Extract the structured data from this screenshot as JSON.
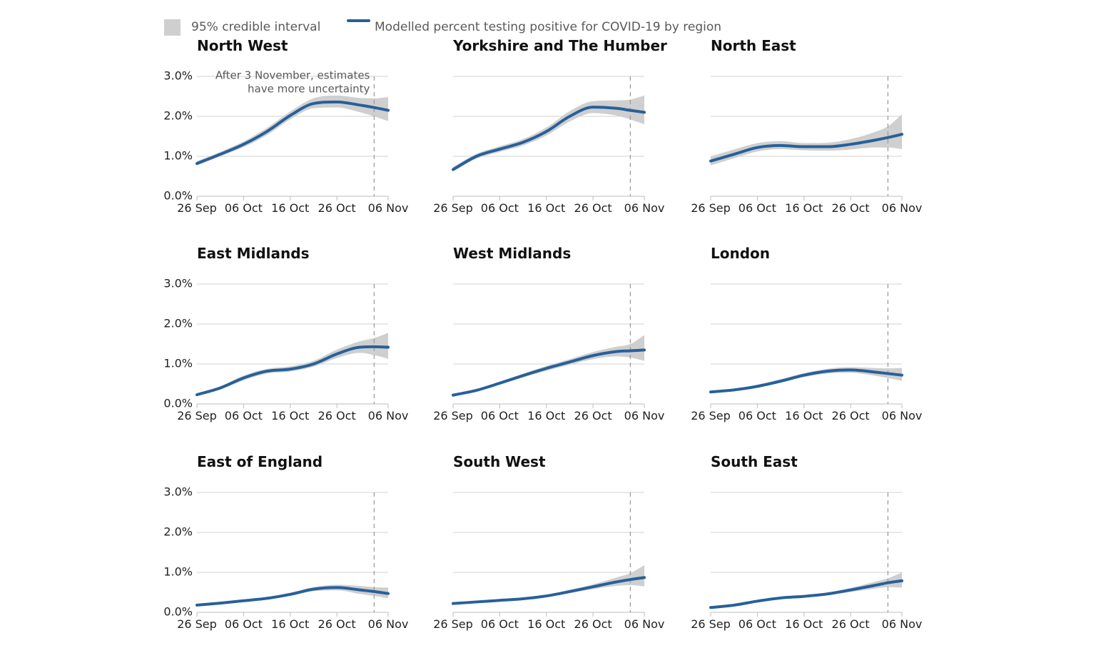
{
  "chart_data": {
    "type": "line",
    "legend": {
      "band_label": "95% credible interval",
      "line_label": "Modelled percent testing positive for COVID-19 by region",
      "placement": "top-left"
    },
    "colors": {
      "line": "#27609a",
      "band": "#cfcfcf",
      "grid": "#d0d0d0"
    },
    "x_ticks": [
      "26 Sep",
      "06 Oct",
      "16 Oct",
      "26 Oct",
      "06 Nov"
    ],
    "x_tick_days": [
      0,
      10,
      20,
      30,
      41
    ],
    "x_range_days": [
      0,
      41
    ],
    "y_ticks": [
      "0.0%",
      "1.0%",
      "2.0%",
      "3.0%"
    ],
    "ylim": [
      0,
      3
    ],
    "cutoff_day": 38,
    "annotation": [
      "After 3 November, estimates",
      "have more uncertainty"
    ],
    "panels": [
      {
        "name": "North West",
        "x": [
          0,
          5,
          10,
          15,
          20,
          25,
          30,
          35,
          38,
          41
        ],
        "y": [
          0.82,
          1.05,
          1.3,
          1.62,
          2.02,
          2.32,
          2.36,
          2.28,
          2.22,
          2.15
        ],
        "lower": [
          0.77,
          1.0,
          1.23,
          1.53,
          1.92,
          2.2,
          2.22,
          2.1,
          2.0,
          1.88
        ],
        "upper": [
          0.88,
          1.11,
          1.37,
          1.71,
          2.12,
          2.45,
          2.52,
          2.46,
          2.45,
          2.48
        ]
      },
      {
        "name": "Yorkshire and The Humber",
        "x": [
          0,
          5,
          10,
          15,
          20,
          25,
          30,
          35,
          38,
          41
        ],
        "y": [
          0.67,
          1.0,
          1.18,
          1.35,
          1.62,
          2.0,
          2.23,
          2.2,
          2.15,
          2.1
        ],
        "lower": [
          0.62,
          0.94,
          1.11,
          1.27,
          1.52,
          1.87,
          2.08,
          2.02,
          1.92,
          1.8
        ],
        "upper": [
          0.73,
          1.06,
          1.25,
          1.43,
          1.72,
          2.13,
          2.38,
          2.4,
          2.42,
          2.52
        ]
      },
      {
        "name": "North East",
        "x": [
          0,
          5,
          10,
          15,
          20,
          25,
          30,
          35,
          38,
          41
        ],
        "y": [
          0.88,
          1.05,
          1.22,
          1.27,
          1.24,
          1.24,
          1.3,
          1.4,
          1.47,
          1.55
        ],
        "lower": [
          0.77,
          0.95,
          1.12,
          1.18,
          1.15,
          1.14,
          1.17,
          1.22,
          1.22,
          1.18
        ],
        "upper": [
          1.0,
          1.17,
          1.33,
          1.38,
          1.33,
          1.34,
          1.43,
          1.6,
          1.75,
          2.05
        ]
      },
      {
        "name": "East Midlands",
        "x": [
          0,
          5,
          10,
          15,
          20,
          25,
          30,
          35,
          38,
          41
        ],
        "y": [
          0.23,
          0.4,
          0.65,
          0.82,
          0.87,
          1.0,
          1.25,
          1.42,
          1.43,
          1.42
        ],
        "lower": [
          0.2,
          0.36,
          0.59,
          0.76,
          0.81,
          0.93,
          1.15,
          1.28,
          1.22,
          1.13
        ],
        "upper": [
          0.27,
          0.44,
          0.71,
          0.88,
          0.94,
          1.08,
          1.36,
          1.57,
          1.65,
          1.78
        ]
      },
      {
        "name": "West Midlands",
        "x": [
          0,
          5,
          10,
          15,
          20,
          25,
          30,
          35,
          38,
          41
        ],
        "y": [
          0.22,
          0.34,
          0.52,
          0.71,
          0.89,
          1.05,
          1.21,
          1.31,
          1.33,
          1.35
        ],
        "lower": [
          0.19,
          0.31,
          0.48,
          0.66,
          0.83,
          0.98,
          1.12,
          1.19,
          1.16,
          1.08
        ],
        "upper": [
          0.25,
          0.37,
          0.56,
          0.76,
          0.95,
          1.12,
          1.3,
          1.43,
          1.5,
          1.72
        ]
      },
      {
        "name": "London",
        "x": [
          0,
          5,
          10,
          15,
          20,
          25,
          30,
          35,
          38,
          41
        ],
        "y": [
          0.3,
          0.35,
          0.44,
          0.57,
          0.72,
          0.82,
          0.85,
          0.8,
          0.76,
          0.72
        ],
        "lower": [
          0.27,
          0.32,
          0.41,
          0.53,
          0.67,
          0.76,
          0.78,
          0.71,
          0.65,
          0.58
        ],
        "upper": [
          0.33,
          0.38,
          0.48,
          0.62,
          0.77,
          0.88,
          0.92,
          0.9,
          0.89,
          0.9
        ]
      },
      {
        "name": "East of England",
        "x": [
          0,
          5,
          10,
          15,
          20,
          25,
          30,
          35,
          38,
          41
        ],
        "y": [
          0.18,
          0.23,
          0.29,
          0.35,
          0.45,
          0.58,
          0.62,
          0.56,
          0.52,
          0.47
        ],
        "lower": [
          0.16,
          0.21,
          0.27,
          0.32,
          0.41,
          0.53,
          0.55,
          0.46,
          0.41,
          0.35
        ],
        "upper": [
          0.2,
          0.25,
          0.31,
          0.38,
          0.49,
          0.63,
          0.69,
          0.66,
          0.63,
          0.62
        ]
      },
      {
        "name": "South West",
        "x": [
          0,
          5,
          10,
          15,
          20,
          25,
          30,
          35,
          38,
          41
        ],
        "y": [
          0.22,
          0.26,
          0.3,
          0.34,
          0.41,
          0.52,
          0.64,
          0.76,
          0.82,
          0.87
        ],
        "lower": [
          0.2,
          0.24,
          0.28,
          0.32,
          0.38,
          0.48,
          0.58,
          0.66,
          0.68,
          0.65
        ],
        "upper": [
          0.24,
          0.28,
          0.32,
          0.36,
          0.44,
          0.56,
          0.7,
          0.87,
          0.98,
          1.18
        ]
      },
      {
        "name": "South East",
        "x": [
          0,
          5,
          10,
          15,
          20,
          25,
          30,
          35,
          38,
          41
        ],
        "y": [
          0.12,
          0.18,
          0.28,
          0.36,
          0.4,
          0.46,
          0.56,
          0.67,
          0.74,
          0.79
        ],
        "lower": [
          0.1,
          0.16,
          0.26,
          0.34,
          0.37,
          0.43,
          0.51,
          0.59,
          0.63,
          0.62
        ],
        "upper": [
          0.14,
          0.2,
          0.3,
          0.38,
          0.43,
          0.49,
          0.61,
          0.76,
          0.85,
          1.0
        ]
      }
    ]
  }
}
